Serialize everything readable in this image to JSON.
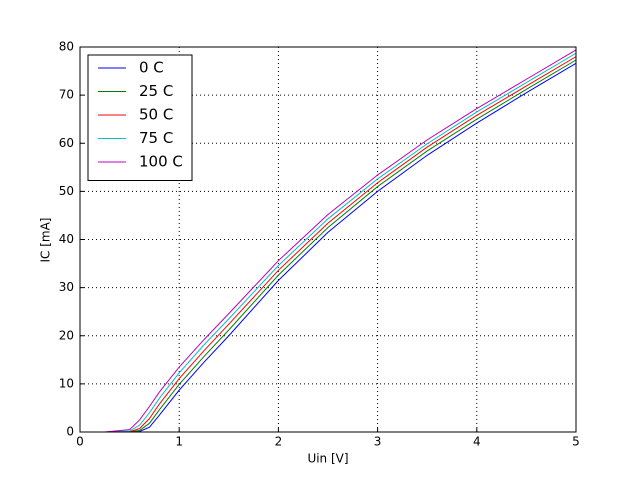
{
  "chart_data": {
    "type": "line",
    "xlabel": "Uin [V]",
    "ylabel": "IC [mA]",
    "x": [
      0,
      0.25,
      0.5,
      0.6,
      0.7,
      0.8,
      1,
      1.25,
      1.5,
      2,
      2.5,
      3,
      3.5,
      4,
      4.5,
      5
    ],
    "series": [
      {
        "name": "0 C",
        "color": "#0000ff",
        "values": [
          0,
          0,
          0,
          0.1,
          1,
          3.5,
          8.7,
          14.5,
          20,
          31.5,
          41.5,
          50,
          57.5,
          64.2,
          70.5,
          76.6
        ]
      },
      {
        "name": "25 C",
        "color": "#008000",
        "values": [
          0,
          0,
          0,
          0.3,
          1.8,
          4.6,
          9.9,
          15.7,
          21.2,
          32.6,
          42.5,
          51,
          58.4,
          65,
          71.2,
          77.3
        ]
      },
      {
        "name": "50 C",
        "color": "#ff0000",
        "values": [
          0,
          0,
          0.05,
          0.7,
          2.8,
          5.8,
          11.1,
          16.9,
          22.4,
          33.6,
          43.4,
          51.8,
          59.2,
          65.8,
          71.9,
          78
        ]
      },
      {
        "name": "75 C",
        "color": "#00bfbf",
        "values": [
          0,
          0,
          0.2,
          1.4,
          4,
          7,
          12.3,
          18.1,
          23.5,
          34.6,
          44.3,
          52.6,
          59.9,
          66.5,
          72.6,
          78.7
        ]
      },
      {
        "name": "100 C",
        "color": "#bf00bf",
        "values": [
          0,
          0,
          0.5,
          2.5,
          5.3,
          8.3,
          13.5,
          19.2,
          24.6,
          35.6,
          45.2,
          53.4,
          60.7,
          67.2,
          73.3,
          79.4
        ]
      }
    ],
    "xlim": [
      0,
      5
    ],
    "xticks": [
      0,
      1,
      2,
      3,
      4,
      5
    ],
    "ylim": [
      0,
      80
    ],
    "yticks": [
      0,
      10,
      20,
      30,
      40,
      50,
      60,
      70,
      80
    ],
    "grid": true,
    "legend": "upper-left"
  }
}
